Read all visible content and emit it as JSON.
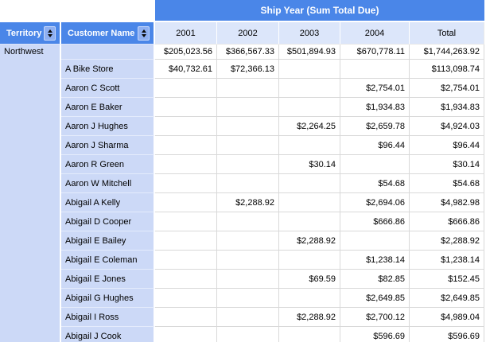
{
  "report": {
    "group_title": "Ship Year (Sum Total Due)",
    "territory_header": "Territory",
    "customer_header": "Customer Name",
    "year_columns": [
      "2001",
      "2002",
      "2003",
      "2004",
      "Total"
    ],
    "territory": "Northwest",
    "rows": [
      {
        "customer": "",
        "values": [
          "$205,023.56",
          "$366,567.33",
          "$501,894.93",
          "$670,778.11",
          "$1,744,263.92"
        ]
      },
      {
        "customer": "A Bike Store",
        "values": [
          "$40,732.61",
          "$72,366.13",
          "",
          "",
          "$113,098.74"
        ]
      },
      {
        "customer": "Aaron C Scott",
        "values": [
          "",
          "",
          "",
          "$2,754.01",
          "$2,754.01"
        ]
      },
      {
        "customer": "Aaron E Baker",
        "values": [
          "",
          "",
          "",
          "$1,934.83",
          "$1,934.83"
        ]
      },
      {
        "customer": "Aaron J Hughes",
        "values": [
          "",
          "",
          "$2,264.25",
          "$2,659.78",
          "$4,924.03"
        ]
      },
      {
        "customer": "Aaron J Sharma",
        "values": [
          "",
          "",
          "",
          "$96.44",
          "$96.44"
        ]
      },
      {
        "customer": "Aaron R Green",
        "values": [
          "",
          "",
          "$30.14",
          "",
          "$30.14"
        ]
      },
      {
        "customer": "Aaron W Mitchell",
        "values": [
          "",
          "",
          "",
          "$54.68",
          "$54.68"
        ]
      },
      {
        "customer": "Abigail A Kelly",
        "values": [
          "",
          "$2,288.92",
          "",
          "$2,694.06",
          "$4,982.98"
        ]
      },
      {
        "customer": "Abigail D Cooper",
        "values": [
          "",
          "",
          "",
          "$666.86",
          "$666.86"
        ]
      },
      {
        "customer": "Abigail E Bailey",
        "values": [
          "",
          "",
          "$2,288.92",
          "",
          "$2,288.92"
        ]
      },
      {
        "customer": "Abigail E Coleman",
        "values": [
          "",
          "",
          "",
          "$1,238.14",
          "$1,238.14"
        ]
      },
      {
        "customer": "Abigail E Jones",
        "values": [
          "",
          "",
          "$69.59",
          "$82.85",
          "$152.45"
        ]
      },
      {
        "customer": "Abigail G Hughes",
        "values": [
          "",
          "",
          "",
          "$2,649.85",
          "$2,649.85"
        ]
      },
      {
        "customer": "Abigail I Ross",
        "values": [
          "",
          "",
          "$2,288.92",
          "$2,700.12",
          "$4,989.04"
        ]
      },
      {
        "customer": "Abigail J Cook",
        "values": [
          "",
          "",
          "",
          "$596.69",
          "$596.69"
        ]
      }
    ],
    "colors": {
      "header_blue": "#4a86e8",
      "year_header_bg": "#dce6fa",
      "label_bg": "#ccd9f7",
      "grid_line": "#d9d9d9"
    }
  }
}
